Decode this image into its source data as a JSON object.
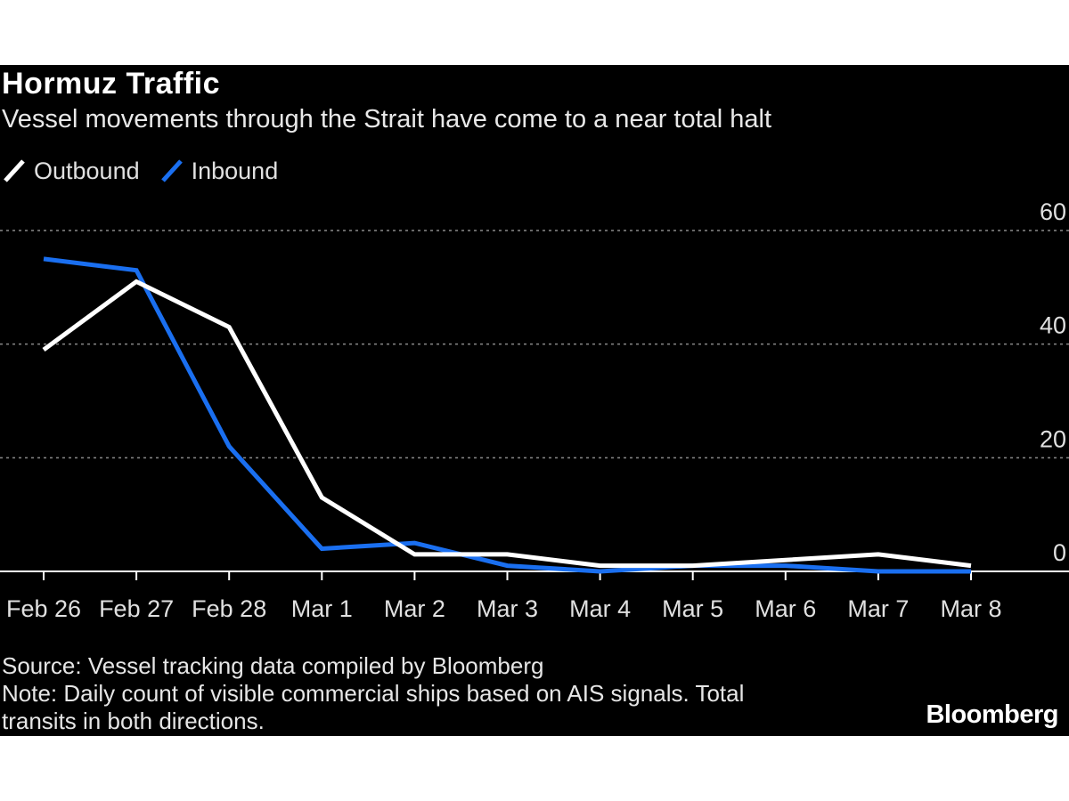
{
  "header": {
    "title": "Hormuz Traffic",
    "subtitle": "Vessel movements through the Strait have come to a near total halt"
  },
  "footer": {
    "source": "Source: Vessel tracking data compiled by Bloomberg",
    "note_line1": "Note: Daily count of visible commercial ships based on AIS signals. Total",
    "note_line2": "transits in both directions.",
    "brand": "Bloomberg"
  },
  "colors": {
    "background": "#000000",
    "outbound": "#ffffff",
    "inbound": "#1a6ff0",
    "grid": "#8a8a8a",
    "axis": "#ffffff"
  },
  "chart_data": {
    "type": "line",
    "title": "Hormuz Traffic",
    "subtitle": "Vessel movements through the Strait have come to a near total halt",
    "categories": [
      "Feb 26",
      "Feb 27",
      "Feb 28",
      "Mar 1",
      "Mar 2",
      "Mar 3",
      "Mar 4",
      "Mar 5",
      "Mar 6",
      "Mar 7",
      "Mar 8"
    ],
    "series": [
      {
        "name": "Outbound",
        "color": "#ffffff",
        "values": [
          39,
          51,
          43,
          13,
          3,
          3,
          1,
          1,
          2,
          3,
          1
        ]
      },
      {
        "name": "Inbound",
        "color": "#1a6ff0",
        "values": [
          55,
          53,
          22,
          4,
          5,
          1,
          0,
          1,
          1,
          0,
          0
        ]
      }
    ],
    "yticks": [
      0,
      20,
      40,
      60
    ],
    "ylim": [
      0,
      60
    ],
    "y_axis_side": "right",
    "grid": "horizontal dotted",
    "legend_position": "top-left"
  }
}
